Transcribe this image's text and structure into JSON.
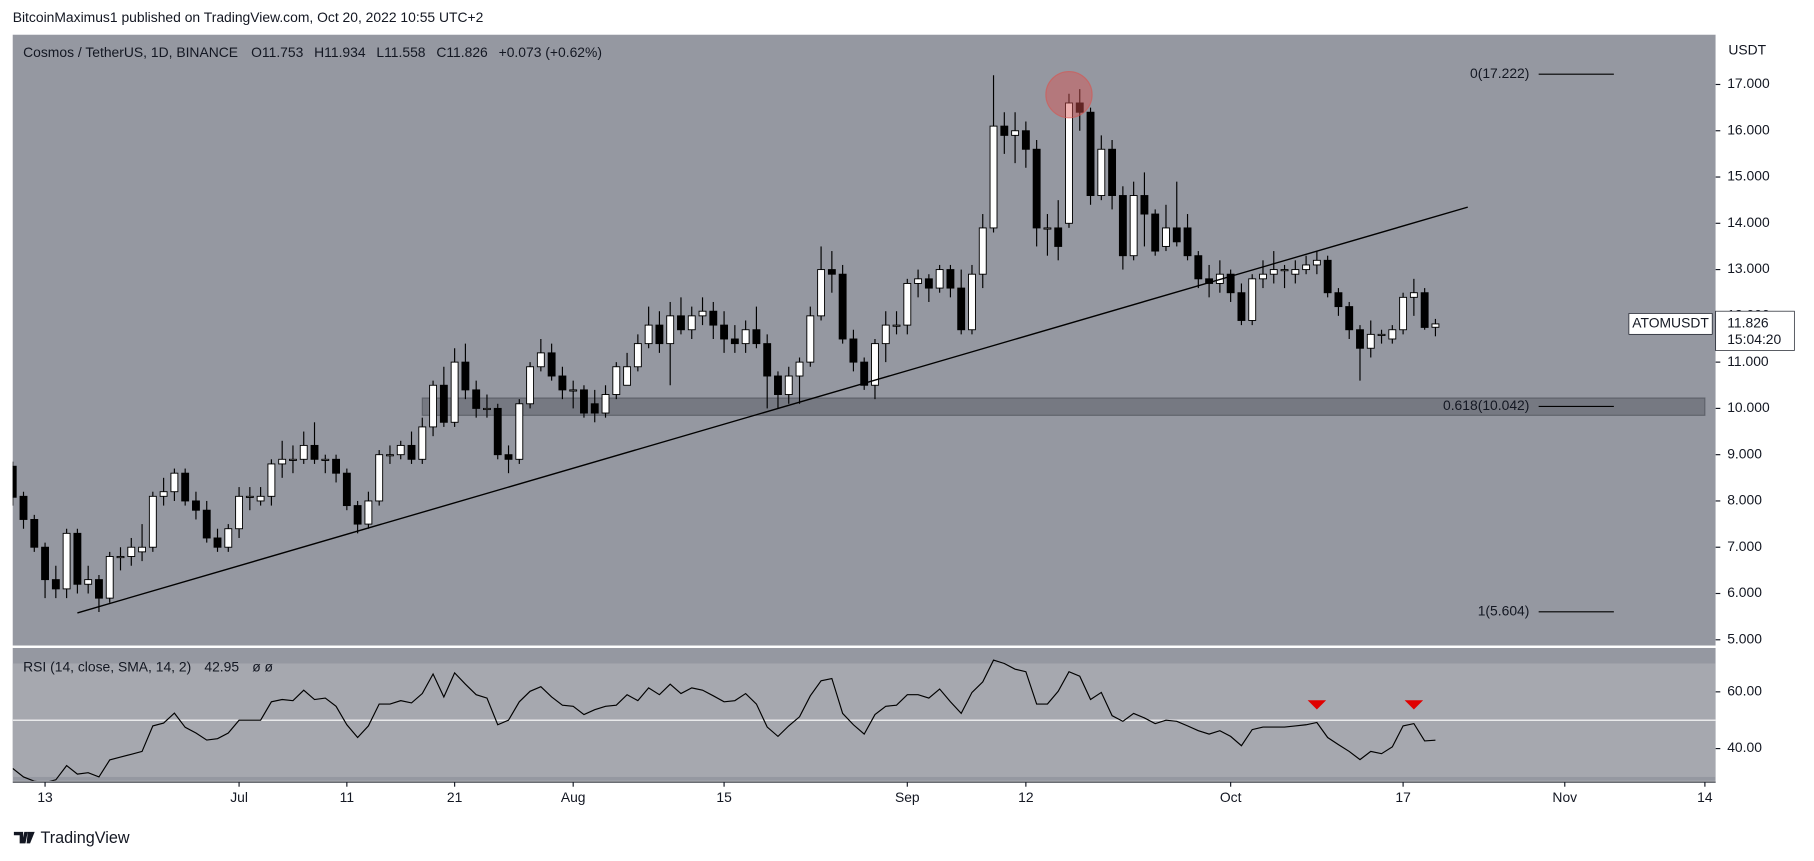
{
  "header": {
    "publisher": "BitcoinMaximus1 published on TradingView.com, Oct 20, 2022 10:55 UTC+2"
  },
  "chart_data": {
    "type": "candlestick",
    "title": "Cosmos / TetherUS, 1D, BINANCE",
    "ohlc_labels": [
      "O",
      "H",
      "L",
      "C"
    ],
    "change_label": "+0.073 (+0.62%)",
    "categories": [
      "06-10",
      "06-11",
      "06-12",
      "06-13",
      "06-14",
      "06-15",
      "06-16",
      "06-17",
      "06-18",
      "06-19",
      "06-20",
      "06-21",
      "06-22",
      "06-23",
      "06-24",
      "06-25",
      "06-26",
      "06-27",
      "06-28",
      "06-29",
      "06-30",
      "07-01",
      "07-02",
      "07-03",
      "07-04",
      "07-05",
      "07-06",
      "07-07",
      "07-08",
      "07-09",
      "07-10",
      "07-11",
      "07-12",
      "07-13",
      "07-14",
      "07-15",
      "07-16",
      "07-17",
      "07-18",
      "07-19",
      "07-20",
      "07-21",
      "07-22",
      "07-23",
      "07-24",
      "07-25",
      "07-26",
      "07-27",
      "07-28",
      "07-29",
      "07-30",
      "07-31",
      "08-01",
      "08-02",
      "08-03",
      "08-04",
      "08-05",
      "08-06",
      "08-07",
      "08-08",
      "08-09",
      "08-10",
      "08-11",
      "08-12",
      "08-13",
      "08-14",
      "08-15",
      "08-16",
      "08-17",
      "08-18",
      "08-19",
      "08-20",
      "08-21",
      "08-22",
      "08-23",
      "08-24",
      "08-25",
      "08-26",
      "08-27",
      "08-28",
      "08-29",
      "08-30",
      "08-31",
      "09-01",
      "09-02",
      "09-03",
      "09-04",
      "09-05",
      "09-06",
      "09-07",
      "09-08",
      "09-09",
      "09-10",
      "09-11",
      "09-12",
      "09-13",
      "09-14",
      "09-15",
      "09-16",
      "09-17",
      "09-18",
      "09-19",
      "09-20",
      "09-21",
      "09-22",
      "09-23",
      "09-24",
      "09-25",
      "09-26",
      "09-27",
      "09-28",
      "09-29",
      "09-30",
      "10-01",
      "10-02",
      "10-03",
      "10-04",
      "10-05",
      "10-06",
      "10-07",
      "10-08",
      "10-09",
      "10-10",
      "10-11",
      "10-12",
      "10-13",
      "10-14",
      "10-15",
      "10-16",
      "10-17",
      "10-18",
      "10-19",
      "10-20"
    ],
    "open": [
      8.75,
      8.1,
      7.6,
      7.0,
      6.3,
      6.1,
      7.3,
      6.2,
      6.3,
      5.9,
      6.8,
      6.8,
      6.9,
      7.0,
      8.1,
      8.2,
      8.6,
      8.0,
      7.8,
      7.2,
      7.0,
      7.4,
      8.1,
      8.0,
      8.1,
      8.8,
      8.9,
      8.9,
      9.2,
      8.9,
      8.9,
      8.6,
      7.9,
      7.5,
      8.0,
      9.0,
      9.0,
      9.2,
      8.9,
      9.6,
      10.5,
      9.7,
      11.0,
      10.4,
      10.0,
      10.0,
      9.0,
      8.9,
      10.1,
      10.9,
      11.2,
      10.7,
      10.4,
      10.4,
      10.1,
      9.9,
      10.3,
      10.5,
      10.9,
      11.4,
      11.8,
      11.4,
      12.0,
      11.7,
      12.0,
      12.1,
      11.8,
      11.5,
      11.4,
      11.7,
      11.4,
      10.7,
      10.3,
      10.7,
      11.0,
      12.0,
      13.0,
      12.9,
      11.5,
      11.0,
      10.5,
      11.4,
      11.8,
      11.8,
      12.7,
      12.8,
      12.6,
      13.0,
      12.6,
      11.7,
      12.9,
      13.9,
      16.1,
      15.9,
      16.0,
      15.6,
      13.9,
      13.9,
      14.0,
      16.6,
      16.4,
      14.6,
      15.6,
      14.6,
      13.3,
      14.6,
      14.2,
      13.5,
      13.9,
      13.9,
      13.3,
      12.8,
      12.7,
      12.9,
      12.5,
      11.9,
      12.8,
      12.9,
      13.0,
      12.9,
      13.0,
      13.1,
      13.2,
      12.5,
      12.2,
      11.7,
      11.3,
      11.6,
      11.5,
      11.7,
      12.4,
      12.5,
      11.753
    ],
    "high": [
      8.85,
      8.2,
      7.7,
      7.1,
      6.6,
      7.4,
      7.4,
      6.6,
      6.4,
      6.9,
      7.0,
      7.2,
      7.5,
      8.2,
      8.5,
      8.7,
      8.7,
      8.2,
      8.0,
      7.4,
      7.5,
      8.3,
      8.3,
      8.3,
      8.9,
      9.3,
      9.2,
      9.5,
      9.7,
      9.0,
      9.0,
      8.7,
      8.0,
      8.2,
      9.1,
      9.2,
      9.3,
      9.5,
      9.8,
      10.6,
      10.9,
      11.3,
      11.4,
      10.6,
      10.3,
      10.1,
      9.2,
      10.2,
      11.0,
      11.5,
      11.4,
      10.9,
      10.6,
      10.5,
      10.4,
      10.5,
      11.0,
      11.2,
      11.6,
      12.2,
      12.1,
      12.3,
      12.4,
      12.2,
      12.4,
      12.3,
      12.1,
      11.8,
      11.9,
      12.2,
      11.6,
      10.8,
      10.9,
      11.1,
      12.2,
      13.5,
      13.4,
      13.1,
      11.7,
      11.1,
      11.5,
      12.1,
      12.1,
      12.8,
      13.0,
      12.9,
      13.1,
      13.1,
      13.0,
      13.1,
      14.2,
      17.2,
      16.4,
      16.4,
      16.2,
      15.8,
      14.2,
      14.5,
      16.8,
      16.9,
      16.5,
      15.9,
      15.8,
      14.8,
      14.9,
      15.1,
      14.3,
      14.4,
      14.9,
      14.2,
      13.4,
      13.1,
      13.2,
      13.0,
      12.7,
      12.9,
      13.2,
      13.4,
      13.1,
      13.2,
      13.3,
      13.4,
      13.3,
      12.6,
      12.3,
      11.8,
      11.9,
      11.7,
      11.8,
      12.5,
      12.8,
      12.6,
      11.934
    ],
    "low": [
      7.9,
      7.4,
      6.9,
      5.9,
      5.9,
      5.9,
      6.0,
      6.0,
      5.6,
      5.8,
      6.5,
      6.6,
      6.7,
      6.9,
      7.9,
      8.0,
      7.9,
      7.6,
      7.1,
      6.9,
      6.9,
      7.2,
      7.8,
      7.9,
      7.9,
      8.5,
      8.6,
      8.8,
      8.8,
      8.6,
      8.4,
      7.8,
      7.3,
      7.4,
      7.9,
      8.8,
      8.9,
      8.8,
      8.8,
      9.4,
      9.6,
      9.6,
      10.2,
      9.8,
      9.8,
      8.9,
      8.6,
      8.8,
      10.0,
      10.8,
      10.6,
      10.2,
      10.0,
      9.8,
      9.7,
      9.8,
      10.2,
      10.5,
      10.8,
      11.3,
      11.2,
      10.5,
      11.6,
      11.5,
      11.8,
      11.5,
      11.2,
      11.2,
      11.2,
      11.3,
      10.0,
      10.0,
      10.1,
      10.1,
      10.9,
      11.9,
      12.5,
      11.4,
      10.8,
      10.4,
      10.2,
      11.0,
      11.6,
      11.6,
      12.4,
      12.3,
      12.5,
      12.4,
      11.6,
      11.6,
      12.6,
      13.8,
      15.5,
      15.3,
      15.2,
      13.5,
      13.3,
      13.2,
      13.9,
      16.0,
      14.4,
      14.5,
      14.3,
      13.0,
      13.2,
      13.5,
      13.3,
      13.4,
      13.5,
      13.2,
      12.6,
      12.4,
      12.5,
      12.3,
      11.8,
      11.8,
      12.6,
      12.7,
      12.6,
      12.7,
      12.9,
      12.9,
      12.4,
      12.0,
      11.5,
      10.6,
      11.1,
      11.4,
      11.4,
      11.6,
      12.0,
      11.7,
      11.558
    ],
    "close": [
      8.08,
      7.6,
      7.0,
      6.3,
      6.1,
      7.3,
      6.2,
      6.3,
      5.9,
      6.8,
      6.8,
      7.0,
      7.0,
      8.1,
      8.2,
      8.6,
      8.0,
      7.8,
      7.2,
      7.0,
      7.4,
      8.1,
      8.1,
      8.1,
      8.8,
      8.9,
      8.9,
      9.2,
      8.9,
      8.9,
      8.6,
      7.9,
      7.5,
      8.0,
      9.0,
      9.0,
      9.2,
      8.9,
      9.6,
      10.5,
      9.7,
      11.0,
      10.4,
      10.0,
      10.0,
      9.0,
      8.9,
      10.1,
      10.9,
      11.2,
      10.7,
      10.4,
      10.4,
      9.9,
      9.9,
      10.3,
      10.9,
      10.9,
      11.4,
      11.8,
      11.4,
      12.0,
      11.7,
      12.0,
      12.1,
      11.8,
      11.5,
      11.4,
      11.7,
      11.4,
      10.7,
      10.3,
      10.7,
      11.0,
      12.0,
      13.0,
      12.9,
      11.5,
      11.0,
      10.5,
      11.4,
      11.8,
      11.8,
      12.7,
      12.8,
      12.6,
      13.0,
      12.6,
      11.7,
      12.9,
      13.9,
      16.1,
      15.9,
      16.0,
      15.6,
      13.9,
      13.9,
      13.5,
      16.6,
      16.4,
      14.6,
      15.6,
      14.6,
      13.3,
      14.6,
      14.2,
      13.4,
      13.9,
      13.6,
      13.3,
      12.8,
      12.7,
      12.9,
      12.5,
      11.9,
      12.8,
      12.9,
      13.0,
      13.0,
      13.0,
      13.1,
      13.2,
      12.5,
      12.2,
      11.7,
      11.3,
      11.6,
      11.6,
      11.7,
      12.4,
      12.5,
      11.75,
      11.826
    ],
    "up_color": "#ffffff",
    "down_color": "#000000",
    "xlim": [
      "06-10",
      "11-15"
    ],
    "xticks": [
      {
        "value": "06-13",
        "label": "13"
      },
      {
        "value": "07-01",
        "label": "Jul"
      },
      {
        "value": "07-11",
        "label": "11"
      },
      {
        "value": "07-21",
        "label": "21"
      },
      {
        "value": "08-01",
        "label": "Aug"
      },
      {
        "value": "08-15",
        "label": "15"
      },
      {
        "value": "09-01",
        "label": "Sep"
      },
      {
        "value": "09-12",
        "label": "12"
      },
      {
        "value": "10-01",
        "label": "Oct"
      },
      {
        "value": "10-17",
        "label": "17"
      },
      {
        "value": "11-01",
        "label": "Nov"
      },
      {
        "value": "11-14",
        "label": "14"
      }
    ],
    "ylim": [
      4.875,
      18.075
    ],
    "yticks": [
      {
        "value": 5,
        "label": "5.000"
      },
      {
        "value": 6,
        "label": "6.000"
      },
      {
        "value": 7,
        "label": "7.000"
      },
      {
        "value": 8,
        "label": "8.000"
      },
      {
        "value": 9,
        "label": "9.000"
      },
      {
        "value": 10,
        "label": "10.000"
      },
      {
        "value": 11,
        "label": "11.000"
      },
      {
        "value": 12,
        "label": "12.000"
      },
      {
        "value": 13,
        "label": "13.000"
      },
      {
        "value": 14,
        "label": "14.000"
      },
      {
        "value": 15,
        "label": "15.000"
      },
      {
        "value": 16,
        "label": "16.000"
      },
      {
        "value": 17,
        "label": "17.000"
      }
    ],
    "y_unit": "USDT",
    "symbol_label": "ATOMUSDT",
    "countdown": "15:04:20",
    "fib_levels": [
      {
        "value": 17.222,
        "label": "0(17.222)"
      },
      {
        "value": 10.042,
        "label": "0.618(10.042)"
      },
      {
        "value": 5.604,
        "label": "1(5.604)"
      }
    ],
    "zone": {
      "x": [
        "07-18",
        "11-14"
      ],
      "y": [
        9.85,
        10.225
      ]
    },
    "trendline": {
      "x": [
        "06-16",
        "10-23"
      ],
      "y": [
        5.58,
        14.35
      ]
    },
    "highlight": {
      "x": "09-16",
      "y": 16.78,
      "color": "#d9534f"
    },
    "indicator": {
      "type": "line",
      "title": "RSI (14, close, SMA, 14, 2)",
      "extra": "ø ø",
      "values": [
        33,
        30,
        28.5,
        28,
        29,
        34,
        31,
        31.5,
        30,
        36,
        37,
        38,
        39,
        48,
        49,
        52.5,
        47.5,
        45.5,
        43,
        43.5,
        45.5,
        50,
        50,
        50,
        56.5,
        57.3,
        56.9,
        60.6,
        57.3,
        57.8,
        54.9,
        48.4,
        43.9,
        48,
        55.7,
        55.7,
        56.9,
        56.1,
        59.4,
        66.3,
        58.2,
        66.7,
        62.7,
        59,
        57.8,
        48.4,
        50,
        56.5,
        60.2,
        61.8,
        58.2,
        55.3,
        54.9,
        52,
        53.7,
        54.9,
        55.3,
        59,
        56.9,
        61.4,
        59,
        62.7,
        59.4,
        61.4,
        60.6,
        58.6,
        56.5,
        56.9,
        59.4,
        55.7,
        47.6,
        44.3,
        48,
        51.2,
        58.6,
        63.9,
        64.7,
        52.4,
        48.4,
        45.1,
        52,
        54.9,
        55.3,
        59,
        59,
        57.8,
        61,
        56.5,
        52.4,
        59.8,
        63.5,
        71.2,
        70,
        68,
        67.1,
        55.7,
        55.7,
        60.2,
        67.1,
        65.5,
        57.3,
        59.8,
        51.6,
        49.6,
        52.4,
        50.8,
        48.8,
        50,
        49.6,
        48,
        46.3,
        45.1,
        46.3,
        44.3,
        41,
        46.7,
        47.6,
        47.6,
        47.6,
        48,
        48.4,
        49.2,
        43.9,
        41.4,
        39,
        36.1,
        39,
        38.2,
        40.6,
        48,
        48.8,
        42.7,
        42.95
      ],
      "color": "#000000",
      "ylim": [
        28.6,
        75.5
      ],
      "yticks": [
        {
          "value": 60,
          "label": "60.00"
        },
        {
          "value": 40,
          "label": "40.00"
        }
      ],
      "band": [
        30,
        70
      ],
      "midline": 50,
      "markers": {
        "x": [
          "10-09",
          "10-18"
        ],
        "y": [
          55,
          55
        ],
        "color": "#e00000"
      }
    }
  },
  "footer": {
    "brand": "TradingView"
  }
}
